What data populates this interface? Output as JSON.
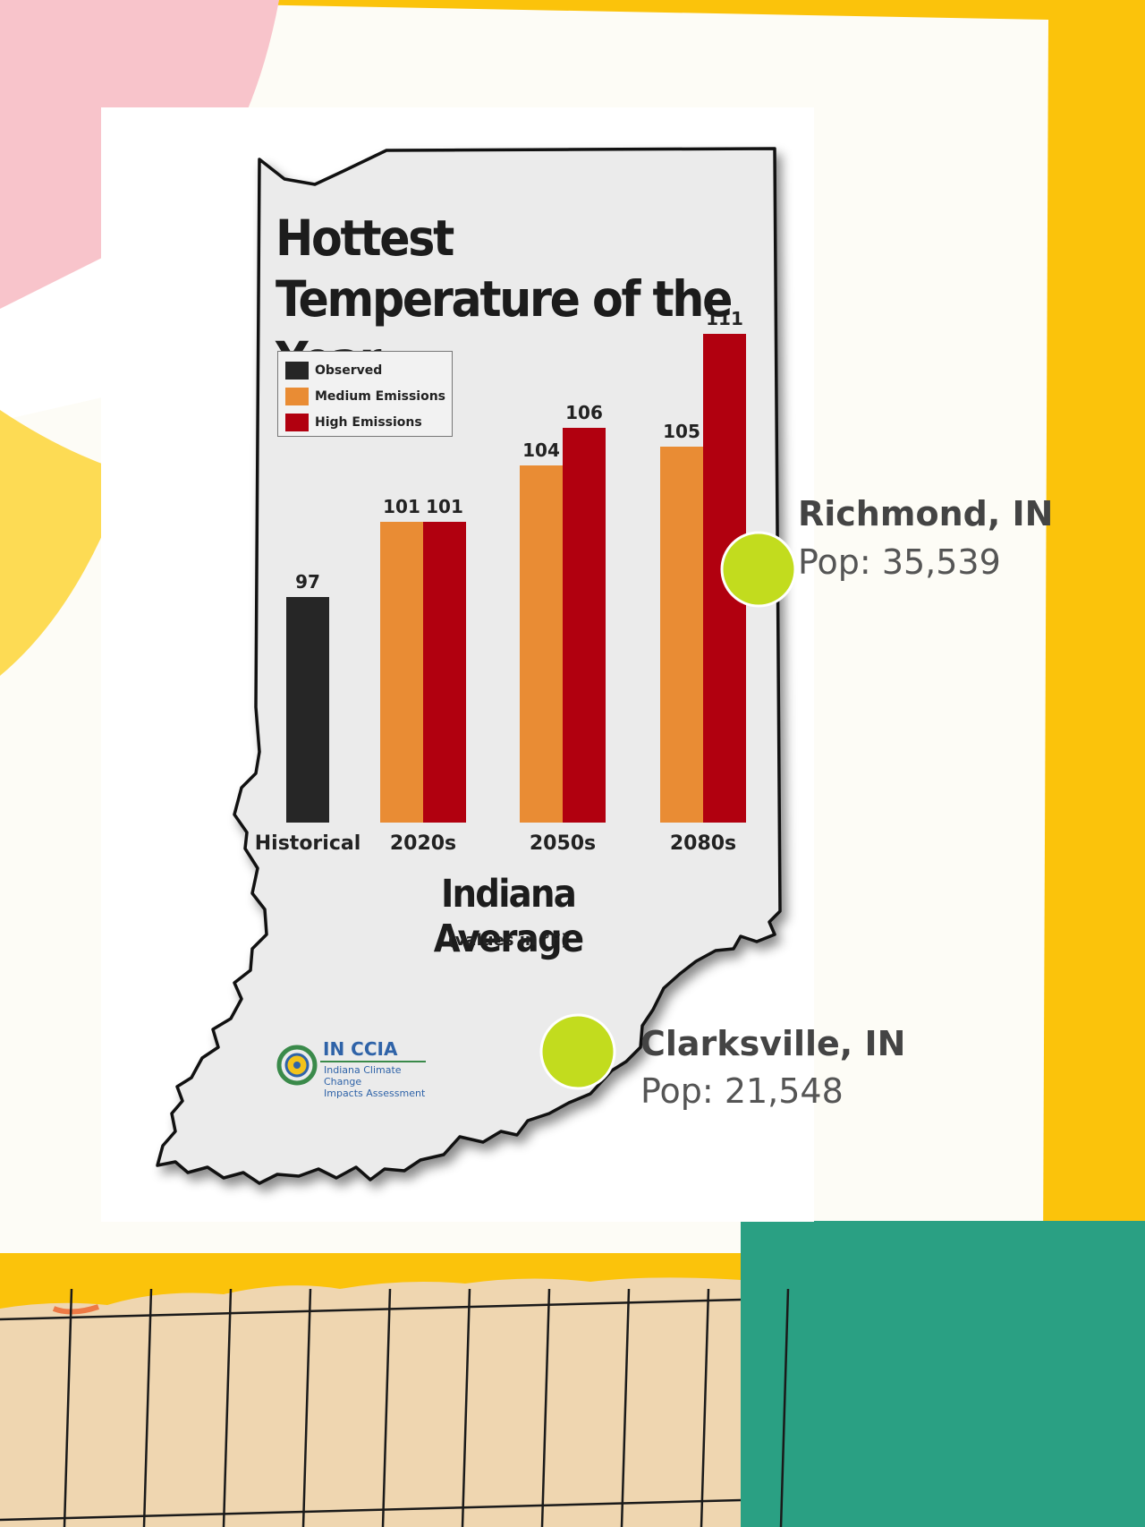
{
  "chart_data": {
    "type": "bar",
    "title": "Hottest Temperature of the Year",
    "subtitle": "Indiana Average",
    "units_note": "(values in °F)",
    "categories": [
      "Historical",
      "2020s",
      "2050s",
      "2080s"
    ],
    "series": [
      {
        "name": "Observed",
        "color": "#262626",
        "values": [
          97,
          null,
          null,
          null
        ]
      },
      {
        "name": "Medium Emissions",
        "color": "#e98c34",
        "values": [
          null,
          101,
          104,
          105
        ]
      },
      {
        "name": "High Emissions",
        "color": "#b1000f",
        "values": [
          null,
          101,
          106,
          111
        ]
      }
    ],
    "ylim": [
      85,
      111
    ],
    "legend_position": "top-left",
    "grid": false
  },
  "logo": {
    "name": "IN CCIA",
    "line1": "Indiana Climate Change",
    "line2": "Impacts Assessment"
  },
  "locations": [
    {
      "name": "Richmond,  IN",
      "population": "Pop: 35,539",
      "marker_color": "#c2dc1e"
    },
    {
      "name": "Clarksville, IN",
      "population": "Pop: 21,548",
      "marker_color": "#c2dc1e"
    }
  ],
  "colors": {
    "gold_frame": "#fbc30b",
    "teal_block": "#2aa083",
    "pink_shape": "#f8c4cb",
    "yellow_shape": "#fddb54",
    "map_fill": "#ebebeb",
    "paper": "#efd6b0"
  }
}
